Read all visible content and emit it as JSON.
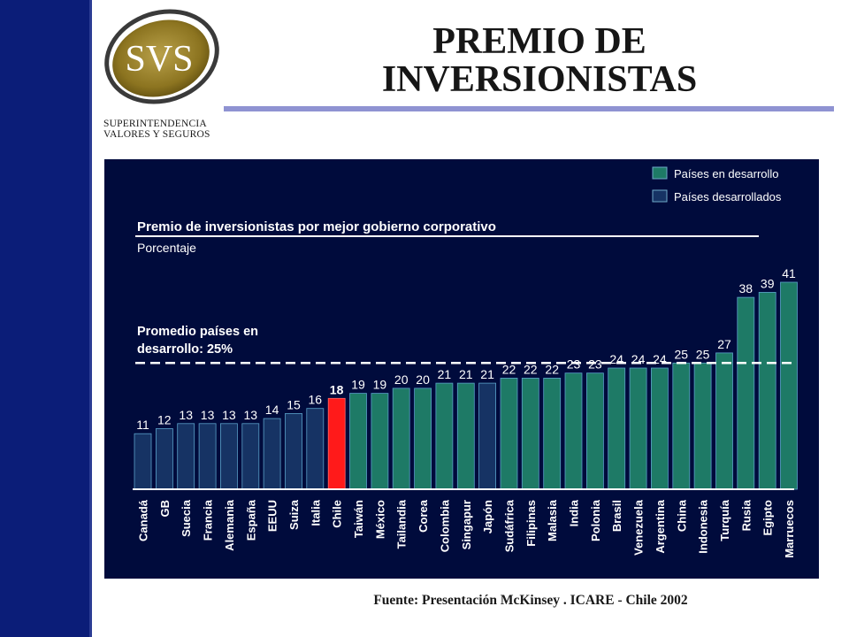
{
  "header": {
    "title_line1": "PREMIO DE",
    "title_line2": "INVERSIONISTAS",
    "logo_mark": "SVS",
    "logo_line1": "SUPERINTENDENCIA",
    "logo_line2": "VALORES Y SEGUROS"
  },
  "footer": {
    "source": "Fuente: Presentación McKinsey . ICARE - Chile 2002"
  },
  "colors": {
    "sidebar": "#0b1d78",
    "chart_background": "#000b3c",
    "developing": "#1e7a66",
    "developed": "#163364",
    "chile": "#ff1a1a"
  },
  "chart_data": {
    "type": "bar",
    "title": "Premio de inversionistas por mejor gobierno corporativo",
    "subtitle": "Porcentaje",
    "reference_line": {
      "label_line1": "Promedio países en",
      "label_line2": "desarrollo: 25%",
      "value": 25
    },
    "legend": {
      "placement": "top-right",
      "entries": [
        {
          "label": "Países en desarrollo",
          "key": "developing"
        },
        {
          "label": "Países desarrollados",
          "key": "developed"
        }
      ]
    },
    "categories": [
      "Canadá",
      "GB",
      "Suecia",
      "Francia",
      "Alemania",
      "España",
      "EEUU",
      "Suiza",
      "Italia",
      "Chile",
      "Taiwán",
      "México",
      "Tailandia",
      "Corea",
      "Colombia",
      "Singapur",
      "Japón",
      "Sudáfrica",
      "Filipinas",
      "Malasia",
      "India",
      "Polonia",
      "Brasil",
      "Venezuela",
      "Argentina",
      "China",
      "Indonesia",
      "Turquía",
      "Rusia",
      "Egipto",
      "Marruecos"
    ],
    "values": [
      11,
      12,
      13,
      13,
      13,
      13,
      14,
      15,
      16,
      18,
      19,
      19,
      20,
      20,
      21,
      21,
      21,
      22,
      22,
      22,
      23,
      23,
      24,
      24,
      24,
      25,
      25,
      27,
      38,
      39,
      41
    ],
    "groups": [
      "developed",
      "developed",
      "developed",
      "developed",
      "developed",
      "developed",
      "developed",
      "developed",
      "developed",
      "chile",
      "developing",
      "developing",
      "developing",
      "developing",
      "developing",
      "developing",
      "developed",
      "developing",
      "developing",
      "developing",
      "developing",
      "developing",
      "developing",
      "developing",
      "developing",
      "developing",
      "developing",
      "developing",
      "developing",
      "developing",
      "developing"
    ],
    "ylim": [
      0,
      41
    ]
  }
}
